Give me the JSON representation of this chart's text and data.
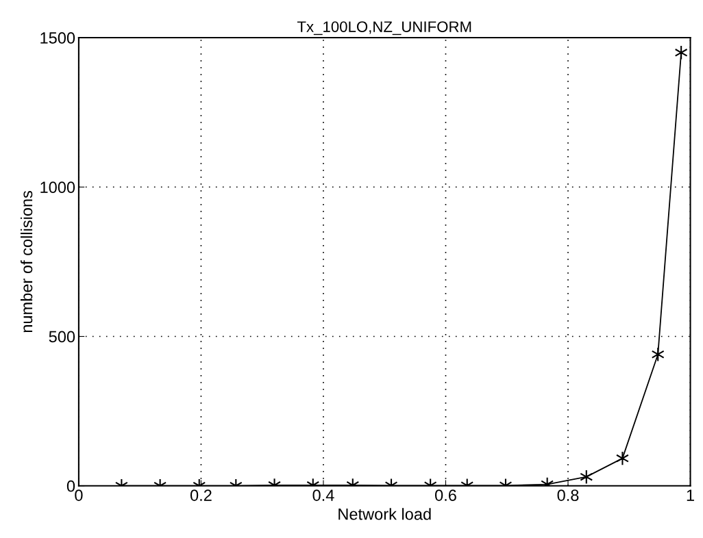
{
  "chart_data": {
    "type": "line",
    "title": "Tx_100LO,NZ_UNIFORM",
    "xlabel": "Network load",
    "ylabel": "number of collisions",
    "series": [
      {
        "color": "#000000",
        "x": [
          0.07,
          0.133,
          0.197,
          0.257,
          0.32,
          0.383,
          0.448,
          0.511,
          0.575,
          0.635,
          0.698,
          0.766,
          0.83,
          0.889,
          0.947,
          0.985
        ],
        "values": [
          0,
          0,
          0,
          0,
          2,
          2,
          2,
          1,
          1,
          1,
          1,
          5,
          30,
          92,
          440,
          1450
        ]
      }
    ],
    "xlim": [
      0,
      1
    ],
    "xticks": [
      0,
      0.2,
      0.4,
      0.6,
      0.8,
      1
    ],
    "ylim": [
      0,
      1500
    ],
    "yticks": [
      0,
      500,
      1000,
      1500
    ],
    "grid": true,
    "marker": "cross",
    "line_style": "solid"
  }
}
